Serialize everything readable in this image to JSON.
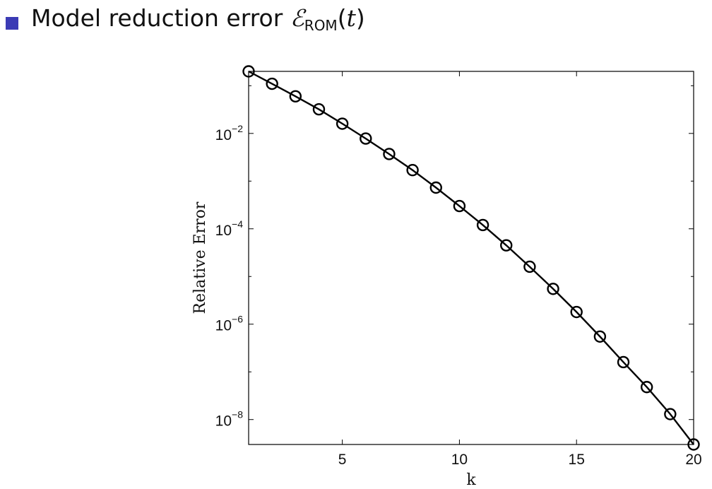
{
  "heading": {
    "text": "Model reduction error ",
    "symbol": "ℰ",
    "symbol_subscript": "ROM",
    "arg_open": "(",
    "arg": "t",
    "arg_close": ")",
    "bullet_color": "#3b3bb5"
  },
  "chart_data": {
    "type": "line",
    "title": "",
    "xlabel": "k",
    "ylabel": "Relative Error",
    "xlim": [
      1,
      20
    ],
    "ylim": [
      3e-09,
      0.2
    ],
    "yscale": "log",
    "grid": false,
    "marker": "circle",
    "line_color": "#000000",
    "xticks": [
      5,
      10,
      15,
      20
    ],
    "xtick_labels": [
      "5",
      "10",
      "15",
      "20"
    ],
    "yticks": [
      1e-08,
      1e-06,
      0.0001,
      0.01
    ],
    "ytick_labels": [
      {
        "base": "10",
        "exp": "−8"
      },
      {
        "base": "10",
        "exp": "−6"
      },
      {
        "base": "10",
        "exp": "−4"
      },
      {
        "base": "10",
        "exp": "−2"
      }
    ],
    "series": [
      {
        "x": [
          1,
          2,
          3,
          4,
          5,
          6,
          7,
          8,
          9,
          10,
          11,
          12,
          13,
          14,
          15,
          16,
          17,
          18,
          19,
          20
        ],
        "values": [
          0.2,
          0.11,
          0.06,
          0.032,
          0.016,
          0.0078,
          0.0037,
          0.0017,
          0.00073,
          0.0003,
          0.00012,
          4.5e-05,
          1.6e-05,
          5.5e-06,
          1.8e-06,
          5.5e-07,
          1.6e-07,
          4.8e-08,
          1.3e-08,
          3e-09
        ]
      }
    ]
  }
}
